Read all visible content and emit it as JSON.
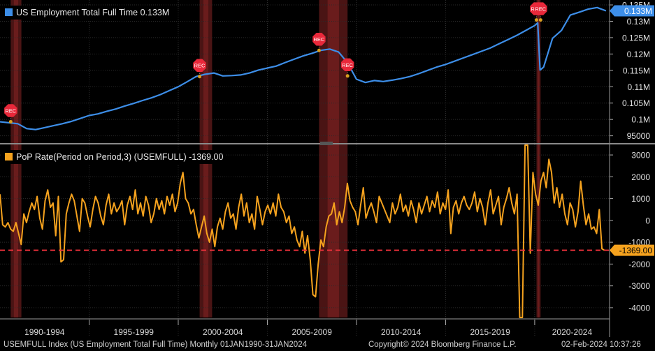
{
  "chart_data": [
    {
      "type": "line",
      "legend": "US Employment Total Full Time 0.133M",
      "current_value_label": "0.133M",
      "y_tick_labels": [
        "95000",
        "0.1M",
        "0.105M",
        "0.11M",
        "0.115M",
        "0.12M",
        "0.125M",
        "0.13M",
        "0.135M"
      ],
      "ylim": [
        93000,
        136500
      ],
      "color": "#3d8ee8",
      "x": [
        1990.0,
        1991.0,
        1991.5,
        1992.0,
        1992.5,
        1993.0,
        1993.5,
        1994.0,
        1994.5,
        1995.0,
        1995.5,
        1996.0,
        1996.5,
        1997.0,
        1997.5,
        1998.0,
        1998.5,
        1999.0,
        1999.5,
        2000.0,
        2000.5,
        2001.0,
        2001.5,
        2002.0,
        2002.5,
        2003.0,
        2003.5,
        2004.0,
        2004.5,
        2005.0,
        2005.5,
        2006.0,
        2006.5,
        2007.0,
        2007.5,
        2008.0,
        2008.5,
        2009.0,
        2009.5,
        2010.0,
        2010.5,
        2011.0,
        2011.5,
        2012.0,
        2012.5,
        2013.0,
        2013.5,
        2014.0,
        2014.5,
        2015.0,
        2015.5,
        2016.0,
        2016.5,
        2017.0,
        2017.5,
        2018.0,
        2018.5,
        2019.0,
        2019.5,
        2020.0,
        2020.17,
        2020.3,
        2020.5,
        2021.0,
        2021.5,
        2022.0,
        2022.5,
        2023.0,
        2023.5,
        2024.0
      ],
      "values": [
        99300,
        98700,
        97200,
        96900,
        97500,
        98100,
        98700,
        99400,
        100300,
        101200,
        101700,
        102500,
        103200,
        104100,
        104900,
        105800,
        106600,
        107600,
        108800,
        110000,
        111500,
        113100,
        113800,
        114200,
        113300,
        113400,
        113600,
        114200,
        115100,
        115700,
        116300,
        117400,
        118400,
        119400,
        120200,
        121100,
        121500,
        120600,
        117300,
        112300,
        111300,
        111900,
        111600,
        112000,
        112500,
        113100,
        114000,
        115000,
        116000,
        116800,
        117800,
        118800,
        119800,
        120800,
        121800,
        123100,
        124400,
        125700,
        127200,
        128700,
        129500,
        115100,
        116000,
        124800,
        127200,
        131900,
        132800,
        133700,
        134200,
        133200
      ],
      "recessions": [
        [
          1990.6,
          1991.2
        ],
        [
          2001.2,
          2001.9
        ],
        [
          2007.9,
          2009.5
        ],
        [
          2020.1,
          2020.33
        ]
      ],
      "rec_markers": [
        [
          1990.6,
          99300
        ],
        [
          2001.2,
          113100
        ],
        [
          2007.9,
          121100
        ],
        [
          2009.5,
          113300
        ],
        [
          2020.1,
          130400
        ],
        [
          2020.33,
          130400
        ]
      ]
    },
    {
      "type": "line",
      "legend": "PoP Rate(Period on Period,3) (USEMFULL) -1369.00",
      "current_value_label": "-1369.00",
      "y_tick_labels": [
        "-4000",
        "-3000",
        "-2000",
        "-1000",
        "0",
        "1000",
        "2000",
        "3000"
      ],
      "ylim": [
        -4450,
        3450
      ],
      "reference_line": -1369,
      "color": "#f5a21e",
      "values": [
        1200,
        -200,
        -300,
        -100,
        -400,
        -500,
        -100,
        -600,
        -1100,
        300,
        -100,
        400,
        800,
        500,
        1100,
        100,
        -400,
        900,
        1400,
        600,
        800,
        -700,
        1100,
        -1900,
        -1800,
        300,
        800,
        1200,
        900,
        200,
        -500,
        1000,
        800,
        200,
        -300,
        500,
        1100,
        800,
        200,
        -200,
        700,
        1200,
        300,
        800,
        400,
        600,
        900,
        -200,
        700,
        1100,
        500,
        1400,
        300,
        800,
        200,
        1100,
        700,
        -100,
        300,
        1000,
        500,
        900,
        300,
        1100,
        700,
        1200,
        400,
        800,
        1700,
        2200,
        1000,
        800,
        300,
        500,
        -200,
        -800,
        -300,
        200,
        -600,
        -1000,
        -400,
        -1200,
        -300,
        100,
        -400,
        400,
        800,
        100,
        300,
        -400,
        600,
        1200,
        200,
        800,
        -100,
        300,
        -400,
        1100,
        500,
        -200,
        400,
        700,
        300,
        800,
        200,
        1200,
        600,
        400,
        -100,
        200,
        -600,
        -300,
        -900,
        -1200,
        -500,
        -1500,
        -700,
        -1800,
        -3400,
        -3500,
        -2000,
        -900,
        -1200,
        -300,
        200,
        300,
        800,
        -200,
        400,
        -100,
        600,
        1700,
        900,
        600,
        400,
        -200,
        700,
        1500,
        100,
        500,
        800,
        400,
        -100,
        1100,
        800,
        500,
        200,
        -100,
        800,
        300,
        600,
        1200,
        400,
        700,
        200,
        900,
        500,
        -100,
        800,
        300,
        700,
        1100,
        400,
        900,
        600,
        1300,
        300,
        800,
        500,
        1400,
        -600,
        600,
        900,
        300,
        800,
        1100,
        700,
        500,
        800,
        1300,
        400,
        1000,
        600,
        -200,
        800,
        1400,
        300,
        700,
        1100,
        -200,
        600,
        1000,
        1500,
        800,
        300,
        1200,
        -4450,
        -4450,
        3450,
        3450,
        -1500,
        2200,
        1200,
        700,
        1800,
        2200,
        1500,
        2800,
        2200,
        800,
        1500,
        600,
        1200,
        300,
        -200,
        800,
        500,
        -300,
        400,
        1800,
        700,
        -200,
        300,
        -400,
        -300,
        -600,
        500,
        -1300,
        -1369
      ],
      "recessions": [
        [
          1990.6,
          1991.2
        ],
        [
          2001.2,
          2001.9
        ],
        [
          2007.9,
          2009.5
        ],
        [
          2020.1,
          2020.33
        ]
      ]
    }
  ],
  "x_axis": {
    "range": [
      1990.0,
      2024.2
    ],
    "period_labels": [
      "1990-1994",
      "1995-1999",
      "2000-2004",
      "2005-2009",
      "2010-2014",
      "2015-2019",
      "2020-2024"
    ]
  },
  "rec_label": "REC",
  "footer": {
    "left": "USEMFULL Index (US Employment Total Full Time)  Monthly 01JAN1990-31JAN2024",
    "center": "Copyright© 2024 Bloomberg Finance L.P.",
    "right": "02-Feb-2024 10:37:26"
  }
}
